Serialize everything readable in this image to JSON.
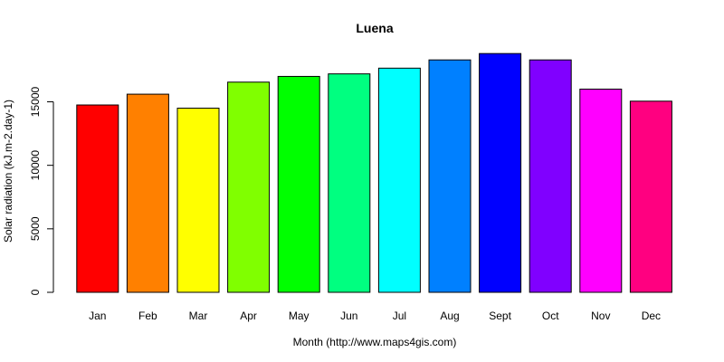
{
  "chart_data": {
    "type": "bar",
    "title": "Luena",
    "xlabel": "Month (http://www.maps4gis.com)",
    "ylabel": "Solar radiation (kJ.m-2.day-1)",
    "categories": [
      "Jan",
      "Feb",
      "Mar",
      "Apr",
      "May",
      "Jun",
      "Jul",
      "Aug",
      "Sept",
      "Oct",
      "Nov",
      "Dec"
    ],
    "values": [
      14750,
      15600,
      14500,
      16550,
      17000,
      17200,
      17650,
      18300,
      18800,
      18300,
      16000,
      15050
    ],
    "colors": [
      "#FF0000",
      "#FF8000",
      "#FFFF00",
      "#80FF00",
      "#00FF00",
      "#00FF80",
      "#00FFFF",
      "#0080FF",
      "#0000FF",
      "#8000FF",
      "#FF00FF",
      "#FF0080"
    ],
    "yticks": [
      0,
      5000,
      10000,
      15000
    ],
    "ylim": [
      0,
      19000
    ],
    "grid": false,
    "legend": "none"
  }
}
